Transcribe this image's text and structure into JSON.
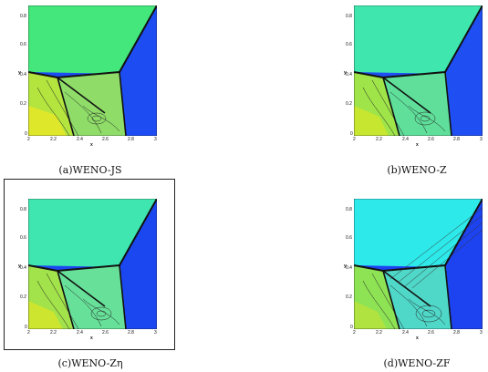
{
  "figures": [
    {
      "id": "a",
      "caption": "(a)WENO-JS",
      "colors": {
        "top": "#43e77c",
        "mid": "#9fe64a",
        "left": "#c9e82c",
        "right": "#1c4cf2",
        "dark": "#8fd24a"
      }
    },
    {
      "id": "b",
      "caption": "(b)WENO-Z",
      "colors": {
        "top": "#3fe7ae",
        "mid": "#8ae35a",
        "left": "#b4e43a",
        "right": "#1f4ef2",
        "dark": "#5fdf9a"
      }
    },
    {
      "id": "c",
      "caption": "(c)WENO-Zη",
      "colors": {
        "top": "#3fe6b0",
        "mid": "#87e460",
        "left": "#b8e337",
        "right": "#1b47f1",
        "dark": "#67e099"
      }
    },
    {
      "id": "d",
      "caption": "(d)WENO-ZF",
      "colors": {
        "top": "#2ee9ea",
        "mid": "#6ee07a",
        "left": "#99e04a",
        "right": "#1d43f0",
        "dark": "#4fd7c8"
      }
    }
  ],
  "axes": {
    "xlabel": "x",
    "ylabel": "y",
    "xticks": [
      "2",
      "2.2",
      "2.4",
      "2.6",
      "2.8",
      "3"
    ],
    "yticks": [
      "0",
      "0.2",
      "0.4",
      "0.6",
      "0.8"
    ]
  }
}
